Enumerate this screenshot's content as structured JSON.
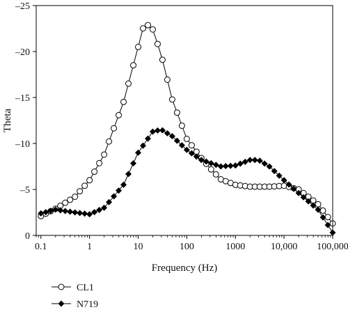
{
  "chart_data": {
    "type": "scatter",
    "xlabel": "Frequency (Hz)",
    "ylabel": "Theta",
    "x_scale": "log",
    "xlim": [
      0.08,
      100000
    ],
    "ylim": [
      0,
      -25
    ],
    "y_axis_inverted": true,
    "x_ticks": [
      0.1,
      1,
      10,
      100,
      1000,
      10000,
      100000
    ],
    "x_tick_labels": [
      "0.1",
      "1",
      "10",
      "100",
      "1000",
      "10,000",
      "100,000"
    ],
    "y_ticks": [
      0,
      -5,
      -10,
      -15,
      -20,
      -25
    ],
    "y_tick_labels": [
      "0",
      "–5",
      "–10",
      "–15",
      "–20",
      "–25"
    ],
    "grid": false,
    "legend_position": "bottom-left",
    "series": [
      {
        "name": "CL1",
        "marker": "open-circle",
        "color": "#000000",
        "points": [
          [
            0.1,
            -2.1
          ],
          [
            0.2,
            -2.9
          ],
          [
            0.5,
            -4.2
          ],
          [
            1,
            -6.0
          ],
          [
            2,
            -8.8
          ],
          [
            5,
            -14.5
          ],
          [
            10,
            -20.5
          ],
          [
            13,
            -22.8
          ],
          [
            17,
            -22.9
          ],
          [
            20,
            -22.4
          ],
          [
            30,
            -19.6
          ],
          [
            50,
            -14.8
          ],
          [
            100,
            -10.5
          ],
          [
            200,
            -8.4
          ],
          [
            300,
            -7.3
          ],
          [
            500,
            -6.1
          ],
          [
            1000,
            -5.5
          ],
          [
            2000,
            -5.3
          ],
          [
            5000,
            -5.3
          ],
          [
            10000,
            -5.4
          ],
          [
            20000,
            -5.0
          ],
          [
            50000,
            -3.4
          ],
          [
            100000,
            -1.3
          ]
        ]
      },
      {
        "name": "N719",
        "marker": "filled-diamond",
        "color": "#000000",
        "points": [
          [
            0.1,
            -2.4
          ],
          [
            0.2,
            -2.8
          ],
          [
            0.5,
            -2.5
          ],
          [
            1,
            -2.3
          ],
          [
            2,
            -3.0
          ],
          [
            5,
            -5.5
          ],
          [
            10,
            -9.0
          ],
          [
            20,
            -11.3
          ],
          [
            30,
            -11.5
          ],
          [
            50,
            -10.8
          ],
          [
            100,
            -9.3
          ],
          [
            200,
            -8.2
          ],
          [
            500,
            -7.5
          ],
          [
            1000,
            -7.6
          ],
          [
            2000,
            -8.2
          ],
          [
            3000,
            -8.2
          ],
          [
            5000,
            -7.5
          ],
          [
            10000,
            -6.0
          ],
          [
            20000,
            -4.6
          ],
          [
            50000,
            -2.8
          ],
          [
            100000,
            -0.3
          ]
        ]
      }
    ]
  }
}
